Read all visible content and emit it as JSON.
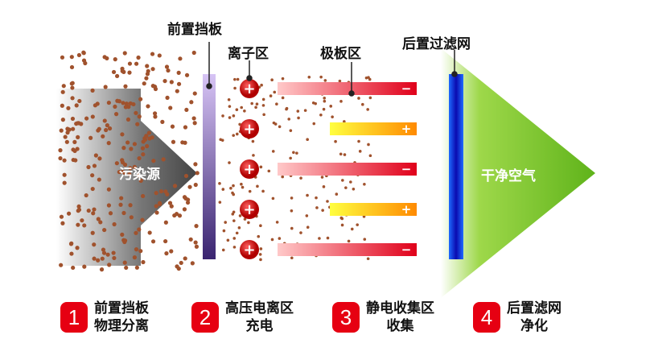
{
  "labels": {
    "front_baffle": "前置挡板",
    "ion_zone": "离子区",
    "plate_zone": "极板区",
    "rear_filter": "后置过滤网",
    "pollution_source": "污染源",
    "clean_air": "干净空气"
  },
  "plates": [
    {
      "sign": "−",
      "charge": "negative"
    },
    {
      "sign": "+",
      "charge": "positive"
    },
    {
      "sign": "−",
      "charge": "negative"
    },
    {
      "sign": "+",
      "charge": "positive"
    },
    {
      "sign": "−",
      "charge": "negative"
    }
  ],
  "ion_symbol": "+",
  "steps": [
    {
      "number": "1",
      "line1": "前置挡板",
      "line2": "物理分离"
    },
    {
      "number": "2",
      "line1": "高压电离区",
      "line2": "充电"
    },
    {
      "number": "3",
      "line1": "静电收集区",
      "line2": "收集"
    },
    {
      "number": "4",
      "line1": "后置滤网",
      "line2": "净化"
    }
  ],
  "colors": {
    "badge": "#e60012",
    "particle": "#a0522d",
    "filter": "#1010c0",
    "clean_arrow": "#7cc520"
  }
}
